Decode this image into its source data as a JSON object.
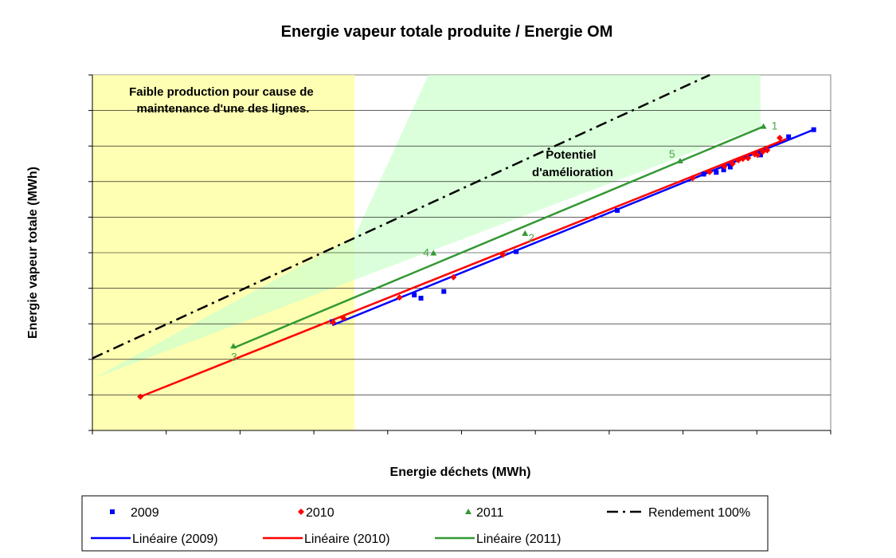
{
  "chart_data": {
    "type": "scatter",
    "title": "Energie vapeur totale produite / Energie OM",
    "xlabel": "Energie déchets (MWh)",
    "ylabel": "Energie vapeur totale  (MWh)",
    "xlim": [
      0,
      100
    ],
    "ylim": [
      0,
      100
    ],
    "grid": "horizontal",
    "legend_placement": "bottom",
    "axis_tick_labels_shown": false,
    "shaded_regions": [
      {
        "kind": "rect",
        "x_range": [
          0,
          35.5
        ],
        "color": "#ffff99",
        "label": "Faible production pour cause de maintenance d'une des lignes."
      },
      {
        "kind": "band",
        "polygon": [
          [
            0,
            14.5
          ],
          [
            35.5,
            54.5
          ],
          [
            45.5,
            100
          ],
          [
            90.5,
            100
          ],
          [
            90.5,
            85.5
          ],
          [
            0,
            14.5
          ]
        ],
        "color": "#ccffcc",
        "label": "Potentiel d'amélioration"
      }
    ],
    "series": [
      {
        "name": "2009",
        "marker": "square",
        "color": "#0000ff",
        "points": [
          [
            32.5,
            30.6
          ],
          [
            43.6,
            38.1
          ],
          [
            44.5,
            37.2
          ],
          [
            47.6,
            39.1
          ],
          [
            57.4,
            50.3
          ],
          [
            71.1,
            61.9
          ],
          [
            82.8,
            72.1
          ],
          [
            84.5,
            72.6
          ],
          [
            85.5,
            73.3
          ],
          [
            86.4,
            74.1
          ],
          [
            90.5,
            77.5
          ],
          [
            94.3,
            82.6
          ],
          [
            97.7,
            84.6
          ]
        ]
      },
      {
        "name": "2010",
        "marker": "diamond",
        "color": "#ff0000",
        "points": [
          [
            6.5,
            9.5
          ],
          [
            32.6,
            30.4
          ],
          [
            34.0,
            31.6
          ],
          [
            41.6,
            37.4
          ],
          [
            48.9,
            43.1
          ],
          [
            55.6,
            49.4
          ],
          [
            81.3,
            71.0
          ],
          [
            83.6,
            72.7
          ],
          [
            85.6,
            74.3
          ],
          [
            86.7,
            75.0
          ],
          [
            87.5,
            76.0
          ],
          [
            88.1,
            76.4
          ],
          [
            88.8,
            76.6
          ],
          [
            89.7,
            77.7
          ],
          [
            90.1,
            77.5
          ],
          [
            90.8,
            78.4
          ],
          [
            91.4,
            78.8
          ],
          [
            93.1,
            82.3
          ]
        ]
      },
      {
        "name": "2011",
        "marker": "triangle",
        "color": "#339933",
        "points": [
          [
            19.1,
            23.7
          ],
          [
            46.2,
            49.9
          ],
          [
            58.6,
            55.4
          ],
          [
            79.6,
            75.8
          ],
          [
            90.9,
            85.5
          ]
        ],
        "point_labels": [
          "3",
          "4",
          "2",
          "5",
          "1"
        ]
      },
      {
        "name": "Rendement 100%",
        "kind": "line",
        "dash": "dash-dot",
        "color": "#000000",
        "x": [
          0,
          100
        ],
        "y": [
          20.3,
          115.6
        ]
      },
      {
        "name": "Linéaire (2009)",
        "kind": "trendline",
        "color": "#0000ff",
        "x": [
          32.5,
          97.7
        ],
        "y": [
          29.6,
          84.6
        ]
      },
      {
        "name": "Linéaire (2010)",
        "kind": "trendline",
        "color": "#ff0000",
        "x": [
          6.5,
          94.0
        ],
        "y": [
          9.5,
          82.0
        ]
      },
      {
        "name": "Linéaire (2011)",
        "kind": "trendline",
        "color": "#339933",
        "x": [
          19.1,
          90.9
        ],
        "y": [
          23.2,
          85.5
        ]
      }
    ],
    "annotations": [
      {
        "text_lines": [
          "Faible production pour cause de",
          "maintenance d'une des lignes."
        ]
      },
      {
        "text_lines": [
          "Potentiel",
          "d'amélioration"
        ]
      }
    ]
  }
}
